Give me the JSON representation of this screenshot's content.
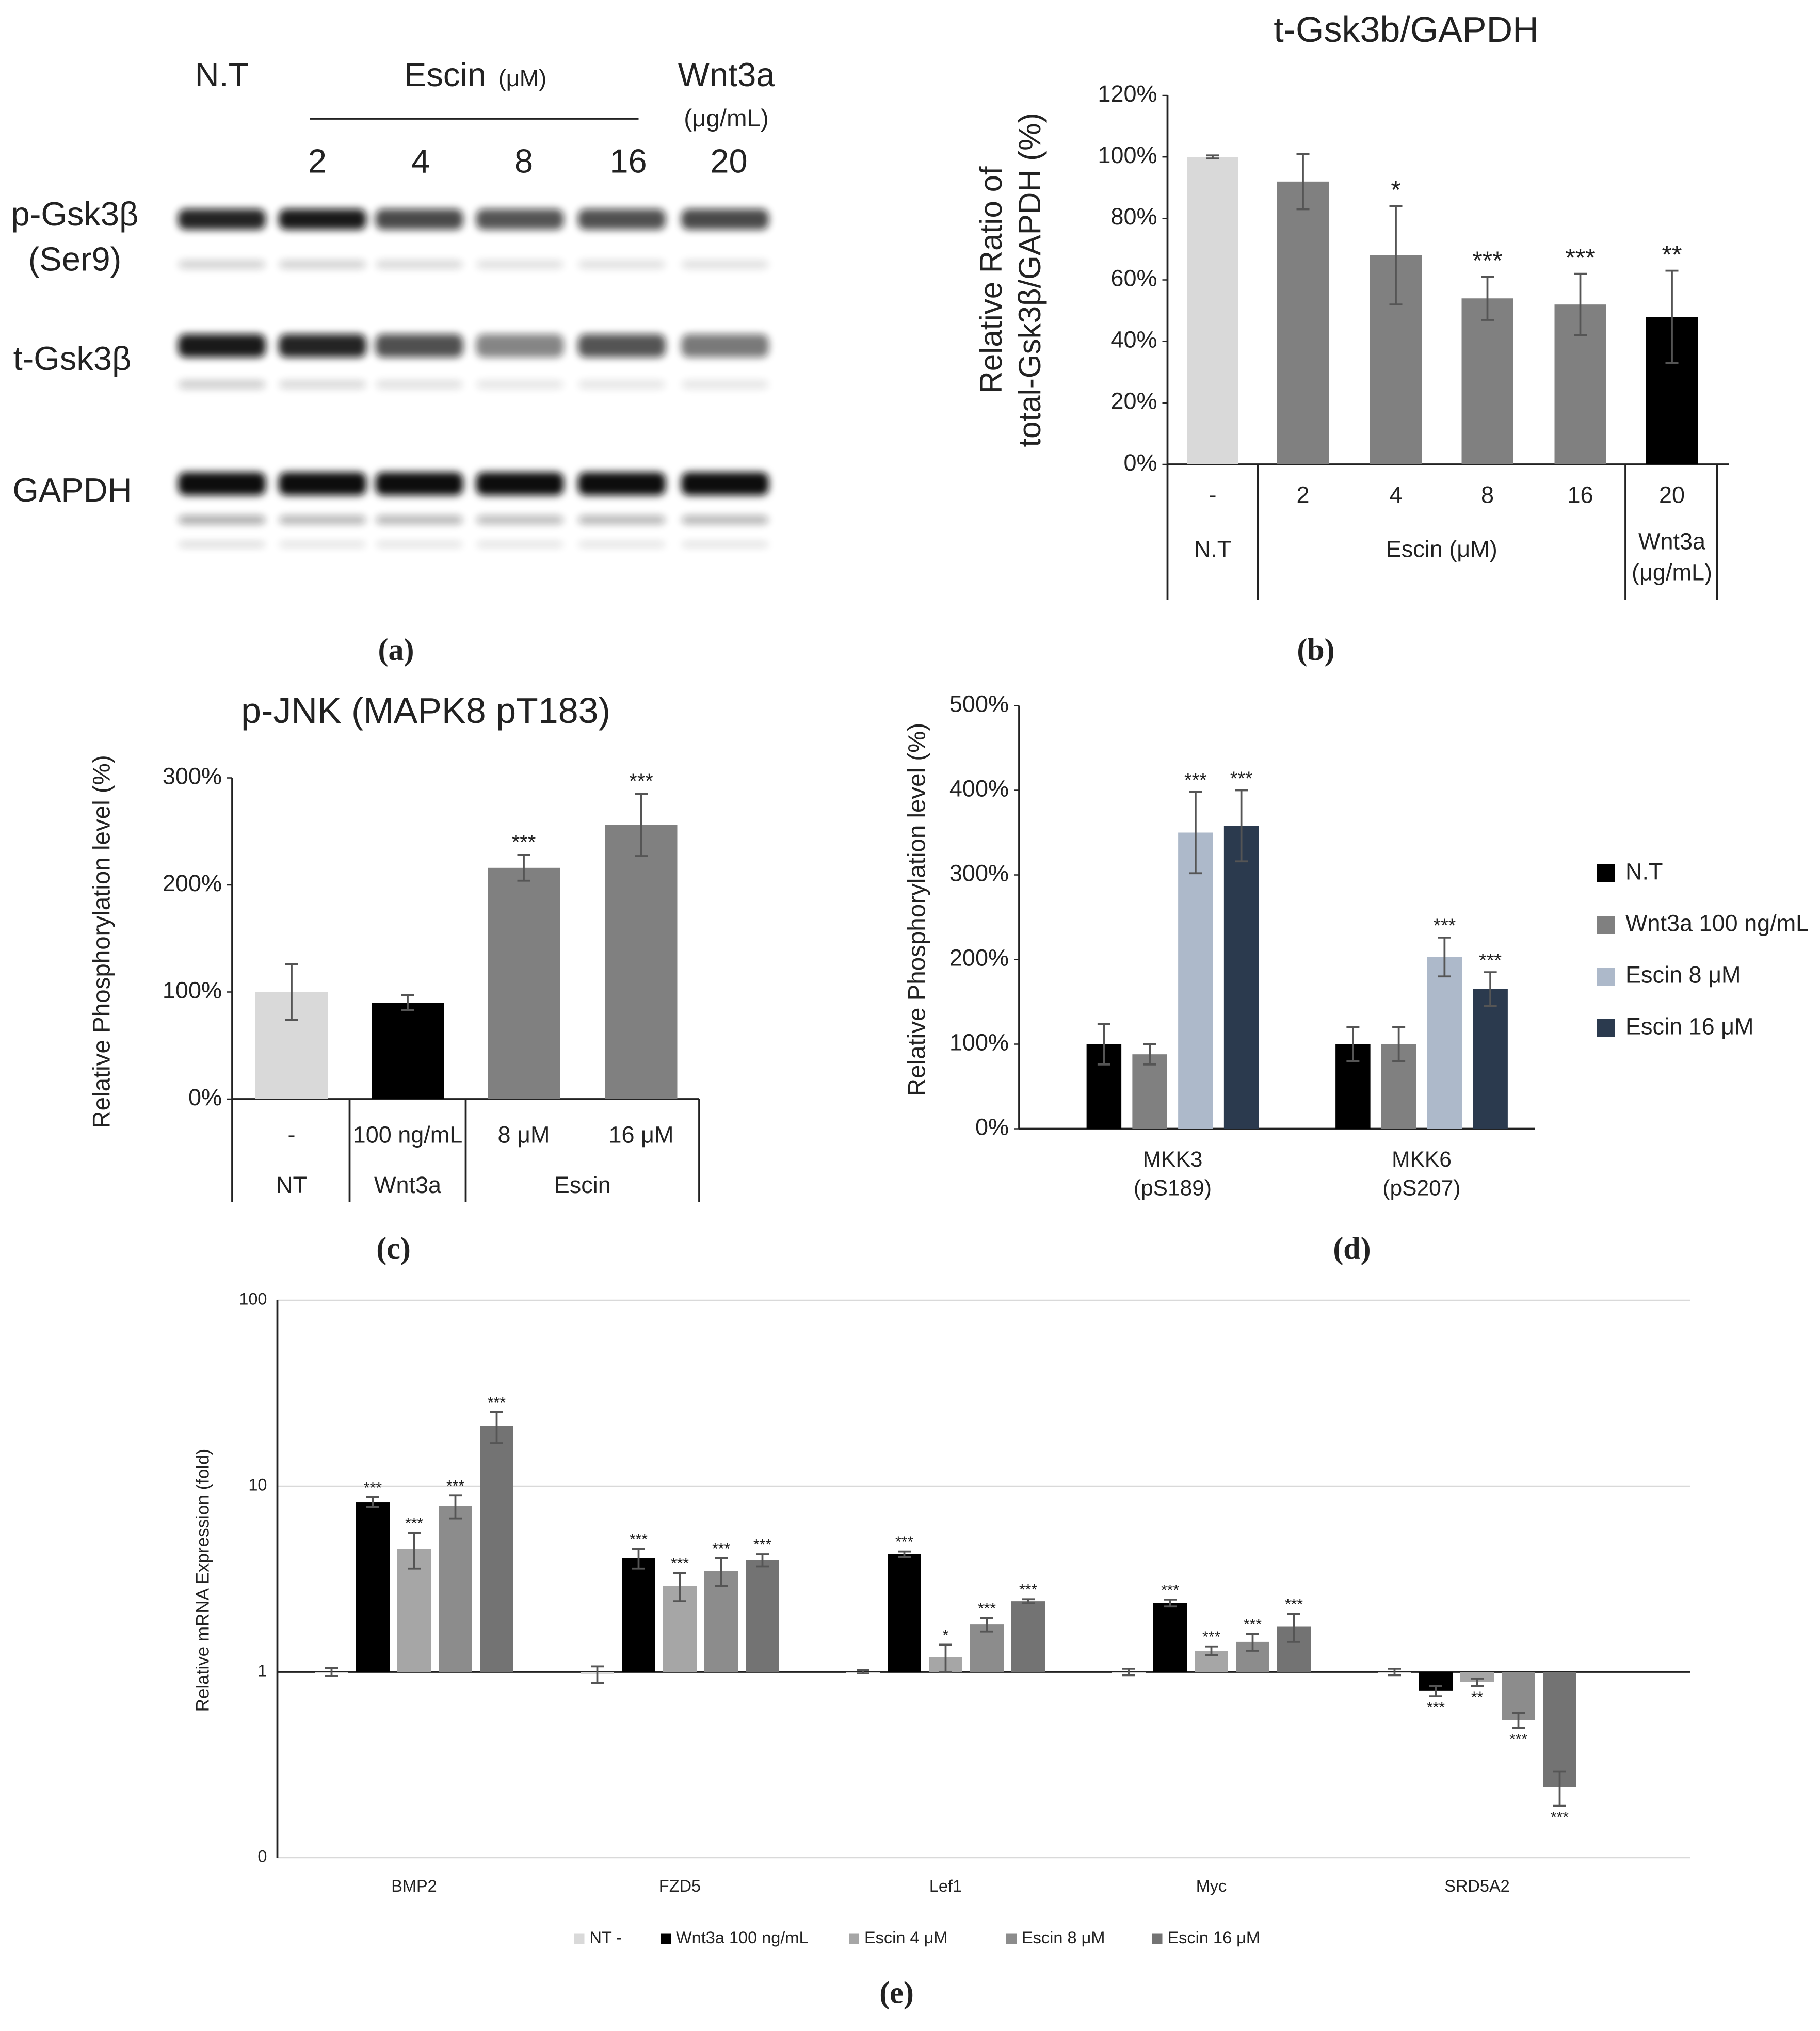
{
  "blot": {
    "headers": {
      "nt": "N.T",
      "escin": "Escin",
      "escin_unit": "(μM)",
      "wnt": "Wnt3a",
      "wnt_unit": "(μg/mL)"
    },
    "lanes": [
      "2",
      "4",
      "8",
      "16",
      "20"
    ],
    "rows": [
      [
        "p-Gsk3β",
        "(Ser9)"
      ],
      [
        "t-Gsk3β"
      ],
      [
        "GAPDH"
      ]
    ]
  },
  "panel_labels": [
    "(a)",
    "(b)",
    "(c)",
    "(d)",
    "(e)"
  ],
  "chart_data": [
    {
      "type": "bar",
      "title": "t-Gsk3b/GAPDH",
      "ylabel": [
        "Relative Ratio of",
        "total-Gsk3β/GAPDH (%)"
      ],
      "categories": [
        "-",
        "2",
        "4",
        "8",
        "16",
        "20"
      ],
      "groups": [
        [
          "N.T"
        ],
        [
          "Escin (μM)"
        ],
        [
          "Wnt3a",
          "(μg/mL)"
        ]
      ],
      "group_spans": [
        1,
        4,
        1
      ],
      "values": [
        100,
        92,
        68,
        54,
        52,
        48
      ],
      "errors": [
        0.5,
        9,
        16,
        7,
        10,
        15
      ],
      "colors": [
        "#d9d9d9",
        "#808080",
        "#808080",
        "#808080",
        "#808080",
        "#000000"
      ],
      "annotations": [
        null,
        null,
        "*",
        "***",
        "***",
        "**"
      ],
      "ylim": [
        0,
        120
      ],
      "yticks": [
        {
          "value": 0,
          "label": "0%"
        },
        {
          "value": 20,
          "label": "20%"
        },
        {
          "value": 40,
          "label": "40%"
        },
        {
          "value": 60,
          "label": "60%"
        },
        {
          "value": 80,
          "label": "80%"
        },
        {
          "value": 100,
          "label": "100%"
        },
        {
          "value": 120,
          "label": "120%"
        }
      ]
    },
    {
      "type": "bar",
      "title": "p-JNK (MAPK8 pT183)",
      "ylabel": "Relative Phosphorylation level (%)",
      "categories": [
        "-",
        "100 ng/mL",
        "8 μM",
        "16 μM"
      ],
      "groups": [
        [
          "NT"
        ],
        [
          "Wnt3a"
        ],
        [
          "Escin"
        ]
      ],
      "group_spans": [
        1,
        1,
        2
      ],
      "values": [
        100,
        90,
        216,
        256
      ],
      "errors": [
        26,
        7,
        12,
        29
      ],
      "colors": [
        "#d9d9d9",
        "#000000",
        "#808080",
        "#808080"
      ],
      "annotations": [
        null,
        null,
        "***",
        "***"
      ],
      "ylim": [
        0,
        300
      ],
      "yticks": [
        {
          "value": 0,
          "label": "0%"
        },
        {
          "value": 100,
          "label": "100%"
        },
        {
          "value": 200,
          "label": "200%"
        },
        {
          "value": 300,
          "label": "300%"
        }
      ]
    },
    {
      "type": "bar",
      "ylabel": "Relative Phosphorylation level (%)",
      "categories": [
        [
          "MKK3",
          "(pS189)"
        ],
        [
          "MKK6",
          "(pS207)"
        ]
      ],
      "series": [
        {
          "name": "N.T",
          "color": "#000000",
          "values": [
            100,
            100
          ],
          "errors": [
            24,
            20
          ],
          "annotations": [
            null,
            null
          ]
        },
        {
          "name": "Wnt3a 100 ng/mL",
          "color": "#808080",
          "values": [
            88,
            100
          ],
          "errors": [
            12,
            20
          ],
          "annotations": [
            null,
            null
          ]
        },
        {
          "name": "Escin 8 μM",
          "color": "#adb9ca",
          "values": [
            350,
            203
          ],
          "errors": [
            48,
            23
          ],
          "annotations": [
            "***",
            "***"
          ]
        },
        {
          "name": "Escin 16 μM",
          "color": "#2b3a4e",
          "values": [
            358,
            165
          ],
          "errors": [
            42,
            20
          ],
          "annotations": [
            "***",
            "***"
          ]
        }
      ],
      "legend": "right",
      "ylim": [
        0,
        500
      ],
      "yticks": [
        {
          "value": 0,
          "label": "0%"
        },
        {
          "value": 100,
          "label": "100%"
        },
        {
          "value": 200,
          "label": "200%"
        },
        {
          "value": 300,
          "label": "300%"
        },
        {
          "value": 400,
          "label": "400%"
        },
        {
          "value": 500,
          "label": "500%"
        }
      ]
    },
    {
      "type": "bar",
      "ylabel": "Relative mRNA Expression (fold)",
      "log": true,
      "baseline": 1,
      "grid": true,
      "categories": [
        "BMP2",
        "FZD5",
        "Lef1",
        "Myc",
        "SRD5A2"
      ],
      "series": [
        {
          "name": "NT -",
          "color": "#d9d9d9",
          "values": [
            1,
            0.97,
            1,
            1,
            1
          ],
          "errors": [
            0.05,
            0.1,
            0.02,
            0.04,
            0.04
          ],
          "annotations": [
            null,
            null,
            null,
            null,
            null
          ]
        },
        {
          "name": "Wnt3a 100 ng/mL",
          "color": "#000000",
          "values": [
            8.2,
            4.1,
            4.3,
            2.35,
            0.79
          ],
          "errors": [
            0.5,
            0.5,
            0.15,
            0.1,
            0.05
          ],
          "annotations": [
            "***",
            "***",
            "***",
            "***",
            "***"
          ]
        },
        {
          "name": "Escin 4 μM",
          "color": "#a6a6a6",
          "values": [
            4.6,
            2.9,
            1.2,
            1.3,
            0.88
          ],
          "errors": [
            1.0,
            0.5,
            0.2,
            0.07,
            0.04
          ],
          "annotations": [
            "***",
            "***",
            "*",
            "***",
            "**"
          ]
        },
        {
          "name": "Escin 8 μM",
          "color": "#8c8c8c",
          "values": [
            7.8,
            3.5,
            1.8,
            1.45,
            0.55
          ],
          "errors": [
            1.1,
            0.6,
            0.15,
            0.15,
            0.05
          ],
          "annotations": [
            "***",
            "***",
            "***",
            "***",
            "***"
          ]
        },
        {
          "name": "Escin 16 μM",
          "color": "#737373",
          "values": [
            21,
            4.0,
            2.4,
            1.75,
            0.24
          ],
          "errors": [
            4,
            0.3,
            0.06,
            0.3,
            0.05
          ],
          "annotations": [
            "***",
            "***",
            "***",
            "***",
            "***"
          ]
        }
      ],
      "legend": "bottom",
      "ylim": [
        0.1,
        100
      ],
      "yticks": [
        {
          "value": 0.1,
          "label": "0"
        },
        1,
        10,
        100
      ]
    }
  ]
}
